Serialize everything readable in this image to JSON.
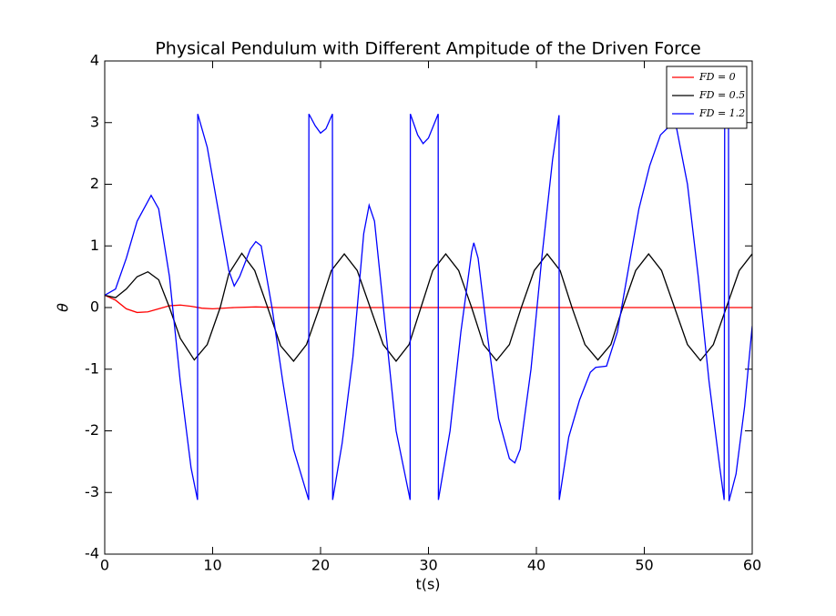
{
  "chart_data": {
    "type": "line",
    "title": "Physical Pendulum with Different Ampitude of the Driven Force",
    "x_label": "t(s)",
    "y_label": "θ",
    "xlim": [
      0,
      60
    ],
    "xticks": [
      0,
      10,
      20,
      30,
      40,
      50,
      60
    ],
    "ylim": [
      -4,
      4
    ],
    "yticks": [
      -4,
      -3,
      -2,
      -1,
      0,
      1,
      2,
      3,
      4
    ],
    "legend": "upper right",
    "series": [
      {
        "name": "FD = 0",
        "color": "#ff0000",
        "x": [
          0,
          1,
          2,
          3,
          4,
          5,
          6,
          7,
          8,
          9,
          10,
          12,
          14,
          16,
          20,
          30,
          40,
          50,
          60
        ],
        "values": [
          0.2,
          0.12,
          -0.02,
          -0.08,
          -0.07,
          -0.02,
          0.03,
          0.04,
          0.02,
          -0.01,
          -0.02,
          0,
          0.01,
          0,
          0,
          0,
          0,
          0,
          0
        ]
      },
      {
        "name": "FD = 0.5",
        "color": "#000000",
        "x": [
          0,
          1,
          2,
          3,
          4,
          5,
          6,
          7,
          8.3,
          9.5,
          10.7,
          11.5,
          12.7,
          13.9,
          15.1,
          16.3,
          17.5,
          18.7,
          19.9,
          21,
          22.2,
          23.4,
          24.6,
          25.8,
          27,
          28.2,
          29.3,
          30.4,
          31.6,
          32.8,
          34,
          35.1,
          36.3,
          37.5,
          38.6,
          39.8,
          41,
          42.2,
          43.3,
          44.5,
          45.7,
          46.9,
          48,
          49.2,
          50.4,
          51.6,
          52.8,
          54,
          55.2,
          56.4,
          57.6,
          58.8,
          60
        ],
        "values": [
          0.2,
          0.16,
          0.3,
          0.5,
          0.58,
          0.45,
          0,
          -0.5,
          -0.85,
          -0.6,
          0,
          0.55,
          0.88,
          0.6,
          0,
          -0.62,
          -0.87,
          -0.6,
          0,
          0.6,
          0.87,
          0.6,
          0,
          -0.6,
          -0.87,
          -0.6,
          0,
          0.6,
          0.87,
          0.6,
          0,
          -0.6,
          -0.86,
          -0.6,
          0,
          0.6,
          0.87,
          0.6,
          0,
          -0.6,
          -0.85,
          -0.6,
          0,
          0.6,
          0.87,
          0.6,
          0,
          -0.6,
          -0.86,
          -0.6,
          0,
          0.6,
          0.87
        ]
      },
      {
        "name": "FD = 1.2",
        "color": "#0000ff",
        "x": [
          0,
          1,
          2,
          3,
          4.3,
          5,
          6,
          7,
          8,
          8.6,
          8.62,
          9.5,
          10.5,
          11.5,
          12,
          12.5,
          13.5,
          14,
          14.5,
          15.5,
          16.5,
          17.5,
          18.9,
          18.92,
          19.5,
          20,
          20.5,
          21.1,
          21.12,
          22,
          23,
          24,
          24.5,
          25,
          26,
          27,
          28.3,
          28.32,
          29,
          29.5,
          30,
          30.9,
          30.92,
          32,
          33,
          34,
          34.2,
          34.6,
          35.5,
          36.5,
          37.5,
          38,
          38.5,
          39.5,
          40.5,
          41.5,
          42.1,
          42.12,
          43,
          44,
          45,
          45.5,
          46.5,
          47.5,
          48.5,
          49.5,
          50.5,
          51.5,
          52.5,
          53,
          54,
          55,
          56,
          57,
          57.4,
          57.45,
          57.8,
          57.85,
          58.5,
          59.3,
          60
        ],
        "values": [
          0.2,
          0.3,
          0.8,
          1.4,
          1.82,
          1.6,
          0.5,
          -1.2,
          -2.6,
          -3.12,
          3.14,
          2.6,
          1.6,
          0.6,
          0.35,
          0.5,
          0.95,
          1.07,
          1.0,
          0,
          -1.2,
          -2.3,
          -3.12,
          3.14,
          2.95,
          2.83,
          2.9,
          3.14,
          -3.12,
          -2.2,
          -0.8,
          1.2,
          1.66,
          1.4,
          -0.3,
          -2.0,
          -3.12,
          3.14,
          2.8,
          2.66,
          2.75,
          3.14,
          -3.12,
          -2.0,
          -0.4,
          0.9,
          1.05,
          0.8,
          -0.5,
          -1.8,
          -2.45,
          -2.52,
          -2.3,
          -1.0,
          0.8,
          2.4,
          3.12,
          -3.12,
          -2.1,
          -1.5,
          -1.05,
          -0.97,
          -0.95,
          -0.4,
          0.6,
          1.6,
          2.3,
          2.8,
          2.97,
          2.9,
          2.0,
          0.5,
          -1.2,
          -2.6,
          -3.12,
          3.14,
          3.14,
          -3.14,
          -2.7,
          -1.6,
          -0.3
        ]
      }
    ]
  }
}
